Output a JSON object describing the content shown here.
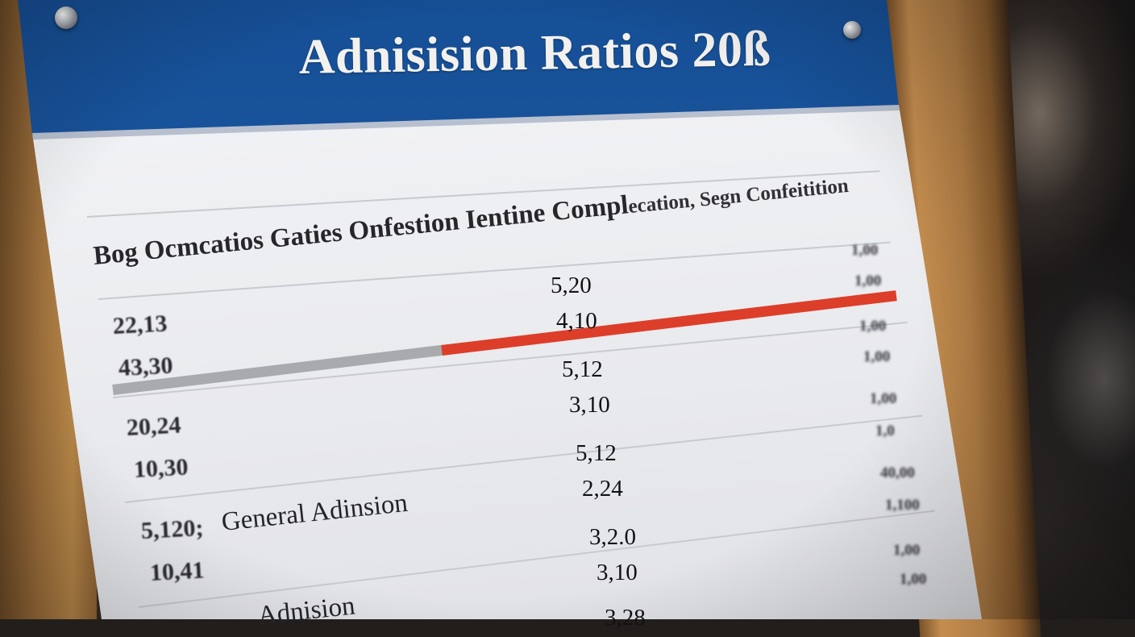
{
  "board": {
    "title": "Adnisision Ratios 20ß",
    "header": {
      "main": "Bog Ocmcatios Gaties Onfestion Ientine Compl",
      "overlap": "ecation",
      "tail": ", Segn Confeitition"
    },
    "left_values": [
      "22,13",
      "43,30",
      "20,24",
      "10,30",
      "5,120;",
      "10,41"
    ],
    "row_labels": [
      "General Adinsion",
      "Adnision"
    ],
    "center_values": [
      "5,20",
      "4,10",
      "5,12",
      "3,10",
      "5,12",
      "2,24",
      "3,2.0",
      "3,10",
      "3,28"
    ],
    "right_values": [
      "1,00",
      "1,00",
      "1,00",
      "1,00",
      "1,00",
      "1,0",
      "40,00",
      "1,100",
      "1,00",
      "1,00"
    ]
  },
  "chart_data": {
    "type": "bar",
    "series": [
      {
        "color": "#a9aaae",
        "values": [
          0.42
        ]
      },
      {
        "color": "#dc3e2a",
        "values": [
          0.58
        ]
      }
    ]
  },
  "colors": {
    "banner": "#1b57a0",
    "paper": "#eeeff2",
    "wood": "#b07d45",
    "accent_red": "#dc3e2a",
    "bar_grey": "#a9aaae"
  }
}
